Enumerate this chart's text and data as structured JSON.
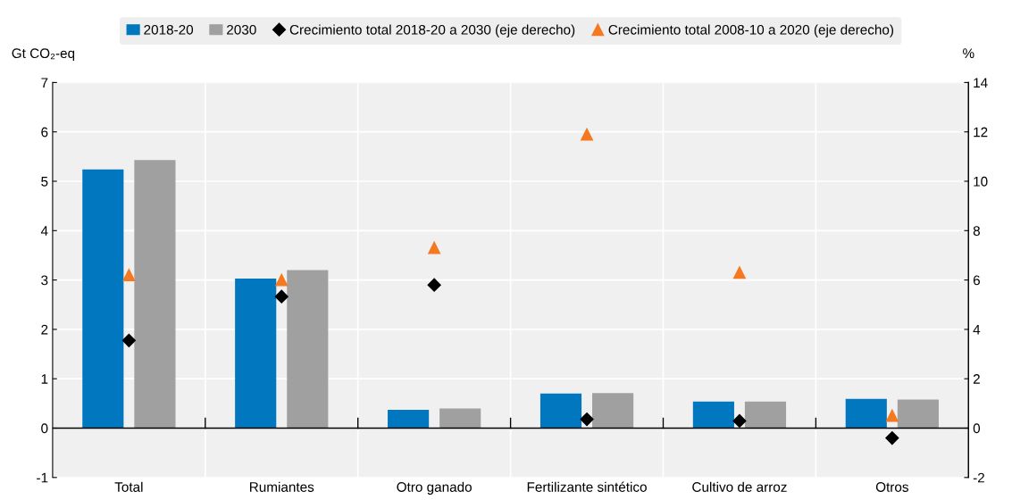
{
  "chart_data": {
    "type": "bar",
    "ylabel": "Gt CO₂-eq",
    "y2label": "%",
    "categories": [
      "Total",
      "Rumiantes",
      "Otro ganado",
      "Fertilizante sintético",
      "Cultivo de arroz",
      "Otros"
    ],
    "series": [
      {
        "name": "2018-20",
        "color": "#0077bf",
        "values": [
          5.24,
          3.03,
          0.37,
          0.7,
          0.54,
          0.59
        ]
      },
      {
        "name": "2030",
        "color": "#a0a0a0",
        "values": [
          5.43,
          3.2,
          0.4,
          0.71,
          0.54,
          0.58
        ]
      },
      {
        "name": "Crecimiento total 2018-20 a 2030 (eje derecho)",
        "type": "scatter",
        "axis": "y2",
        "marker": "diamond",
        "color": "#000000",
        "values": [
          3.55,
          5.33,
          5.8,
          0.36,
          0.29,
          -0.4
        ]
      },
      {
        "name": "Crecimiento total 2008-10 a 2020 (eje derecho)",
        "type": "scatter",
        "axis": "y2",
        "marker": "triangle",
        "color": "#f47920",
        "values": [
          6.2,
          6.0,
          7.3,
          11.9,
          6.3,
          0.5
        ]
      }
    ],
    "ylim": [
      -1,
      7
    ],
    "yticks": [
      -1,
      0,
      1,
      2,
      3,
      4,
      5,
      6,
      7
    ],
    "y2lim": [
      -2,
      14
    ],
    "y2ticks": [
      -2,
      0,
      2,
      4,
      6,
      8,
      10,
      12,
      14
    ],
    "grid": true,
    "legend": "top"
  }
}
